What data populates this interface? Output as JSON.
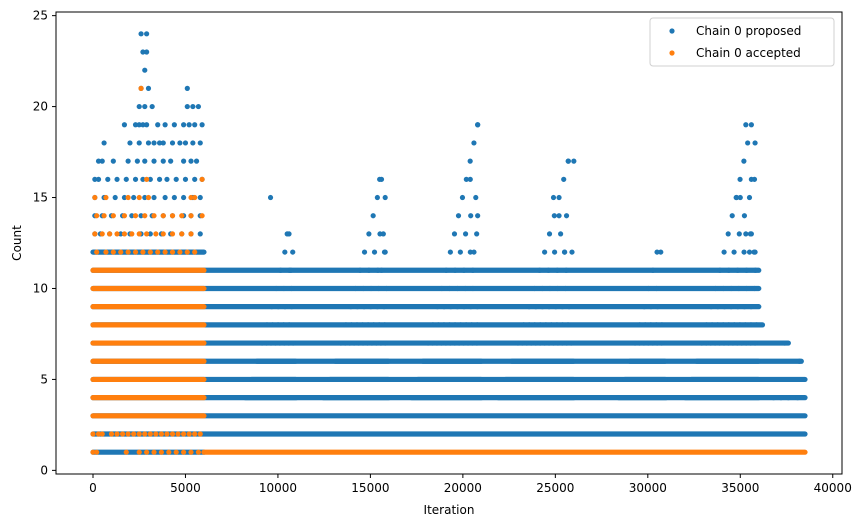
{
  "chart_data": {
    "type": "scatter",
    "title": "",
    "xlabel": "Iteration",
    "ylabel": "Count",
    "xlim": [
      -2000,
      40500
    ],
    "ylim": [
      -0.2,
      25.2
    ],
    "xticks": [
      0,
      5000,
      10000,
      15000,
      20000,
      25000,
      30000,
      35000,
      40000
    ],
    "yticks": [
      0,
      5,
      10,
      15,
      20,
      25
    ],
    "xtick_labels": [
      "0",
      "5000",
      "10000",
      "15000",
      "20000",
      "25000",
      "30000",
      "35000",
      "40000"
    ],
    "ytick_labels": [
      "0",
      "5",
      "10",
      "15",
      "20",
      "25"
    ],
    "grid": false,
    "legend_position": "top-right",
    "series": [
      {
        "name": "Chain 0 proposed",
        "color": "#1f77b4",
        "bands": [
          {
            "y": 1,
            "x_start": 0,
            "x_end": 6000
          },
          {
            "y": 2,
            "x_start": 0,
            "x_end": 38500
          },
          {
            "y": 3,
            "x_start": 0,
            "x_end": 38500
          },
          {
            "y": 4,
            "x_start": 0,
            "x_end": 38500
          },
          {
            "y": 5,
            "x_start": 0,
            "x_end": 38500
          },
          {
            "y": 6,
            "x_start": 0,
            "x_end": 38300
          },
          {
            "y": 7,
            "x_start": 0,
            "x_end": 37600
          },
          {
            "y": 8,
            "x_start": 0,
            "x_end": 36200
          },
          {
            "y": 9,
            "x_start": 0,
            "x_end": 36000
          },
          {
            "y": 10,
            "x_start": 0,
            "x_end": 36000
          },
          {
            "y": 11,
            "x_start": 0,
            "x_end": 36000
          },
          {
            "y": 12,
            "x_start": 0,
            "x_end": 6000
          }
        ],
        "clusters": [
          {
            "x_start": 7800,
            "x_end": 11000,
            "peak_x": 10600,
            "top": 13
          },
          {
            "x_start": 12000,
            "x_end": 16000,
            "peak_x": 15600,
            "top": 16
          },
          {
            "x_start": 16800,
            "x_end": 21000,
            "peak_x": 20800,
            "top": 19
          },
          {
            "x_start": 21400,
            "x_end": 26000,
            "peak_x": 25700,
            "top": 17
          },
          {
            "x_start": 28000,
            "x_end": 31000,
            "peak_x": 30500,
            "top": 12
          },
          {
            "x_start": 31600,
            "x_end": 36000,
            "peak_x": 35600,
            "top": 19
          }
        ],
        "points": [
          [
            2600,
            24
          ],
          [
            2900,
            24
          ],
          [
            2700,
            23
          ],
          [
            2900,
            23
          ],
          [
            2800,
            22
          ],
          [
            2600,
            21
          ],
          [
            3000,
            21
          ],
          [
            5100,
            21
          ],
          [
            2500,
            20
          ],
          [
            2800,
            20
          ],
          [
            3200,
            20
          ],
          [
            5100,
            20
          ],
          [
            5400,
            20
          ],
          [
            5700,
            20
          ],
          [
            1700,
            19
          ],
          [
            2300,
            19
          ],
          [
            2500,
            19
          ],
          [
            2700,
            19
          ],
          [
            2900,
            19
          ],
          [
            3500,
            19
          ],
          [
            3900,
            19
          ],
          [
            4400,
            19
          ],
          [
            4900,
            19
          ],
          [
            5200,
            19
          ],
          [
            5500,
            19
          ],
          [
            5900,
            19
          ],
          [
            600,
            18
          ],
          [
            2000,
            18
          ],
          [
            2500,
            18
          ],
          [
            3000,
            18
          ],
          [
            3300,
            18
          ],
          [
            3600,
            18
          ],
          [
            3800,
            18
          ],
          [
            4300,
            18
          ],
          [
            4700,
            18
          ],
          [
            5000,
            18
          ],
          [
            5400,
            18
          ],
          [
            5800,
            18
          ],
          [
            300,
            17
          ],
          [
            500,
            17
          ],
          [
            1100,
            17
          ],
          [
            1900,
            17
          ],
          [
            2400,
            17
          ],
          [
            2800,
            17
          ],
          [
            3300,
            17
          ],
          [
            3800,
            17
          ],
          [
            4200,
            17
          ],
          [
            4900,
            17
          ],
          [
            5300,
            17
          ],
          [
            5600,
            17
          ],
          [
            100,
            16
          ],
          [
            300,
            16
          ],
          [
            800,
            16
          ],
          [
            1300,
            16
          ],
          [
            1800,
            16
          ],
          [
            2300,
            16
          ],
          [
            2700,
            16
          ],
          [
            3100,
            16
          ],
          [
            3600,
            16
          ],
          [
            4000,
            16
          ],
          [
            4500,
            16
          ],
          [
            5000,
            16
          ],
          [
            5500,
            16
          ],
          [
            5900,
            16
          ],
          [
            100,
            15
          ],
          [
            600,
            15
          ],
          [
            1200,
            15
          ],
          [
            1700,
            15
          ],
          [
            2200,
            15
          ],
          [
            2800,
            15
          ],
          [
            3300,
            15
          ],
          [
            3900,
            15
          ],
          [
            4400,
            15
          ],
          [
            4900,
            15
          ],
          [
            5400,
            15
          ],
          [
            5800,
            15
          ],
          [
            100,
            14
          ],
          [
            500,
            14
          ],
          [
            1000,
            14
          ],
          [
            1600,
            14
          ],
          [
            2100,
            14
          ],
          [
            2600,
            14
          ],
          [
            3200,
            14
          ],
          [
            3800,
            14
          ],
          [
            4300,
            14
          ],
          [
            4900,
            14
          ],
          [
            5300,
            14
          ],
          [
            5800,
            14
          ],
          [
            100,
            13
          ],
          [
            400,
            13
          ],
          [
            900,
            13
          ],
          [
            1500,
            13
          ],
          [
            2000,
            13
          ],
          [
            2600,
            13
          ],
          [
            3100,
            13
          ],
          [
            3700,
            13
          ],
          [
            4200,
            13
          ],
          [
            4800,
            13
          ],
          [
            5300,
            13
          ],
          [
            5800,
            13
          ],
          [
            9600,
            15
          ],
          [
            10500,
            13
          ],
          [
            10800,
            12
          ],
          [
            10700,
            11
          ],
          [
            15500,
            16
          ],
          [
            15800,
            15
          ],
          [
            15700,
            13
          ],
          [
            15800,
            12
          ],
          [
            15600,
            11
          ],
          [
            20400,
            16
          ],
          [
            20800,
            19
          ],
          [
            20800,
            14
          ],
          [
            20600,
            12
          ],
          [
            24900,
            15
          ],
          [
            25200,
            14
          ],
          [
            25700,
            17
          ],
          [
            26000,
            17
          ],
          [
            25500,
            12
          ],
          [
            25900,
            12
          ],
          [
            30700,
            12
          ],
          [
            35300,
            19
          ],
          [
            35600,
            16
          ],
          [
            35800,
            18
          ],
          [
            34800,
            15
          ],
          [
            35000,
            15
          ],
          [
            35300,
            13
          ],
          [
            35600,
            13
          ],
          [
            35500,
            12
          ],
          [
            35800,
            12
          ],
          [
            37400,
            7
          ],
          [
            38200,
            6
          ],
          [
            36800,
            4
          ],
          [
            37200,
            4
          ],
          [
            37600,
            4
          ],
          [
            38100,
            4
          ]
        ]
      },
      {
        "name": "Chain 0 accepted",
        "color": "#ff7f0e",
        "bands": [
          {
            "y": 1,
            "x_start": 6000,
            "x_end": 38500
          },
          {
            "y": 3,
            "x_start": 0,
            "x_end": 6000
          },
          {
            "y": 4,
            "x_start": 0,
            "x_end": 6000
          },
          {
            "y": 5,
            "x_start": 0,
            "x_end": 6000
          },
          {
            "y": 6,
            "x_start": 0,
            "x_end": 6000
          },
          {
            "y": 7,
            "x_start": 0,
            "x_end": 6000
          },
          {
            "y": 8,
            "x_start": 0,
            "x_end": 6000
          },
          {
            "y": 9,
            "x_start": 0,
            "x_end": 6000
          },
          {
            "y": 10,
            "x_start": 0,
            "x_end": 6000
          },
          {
            "y": 11,
            "x_start": 0,
            "x_end": 6000
          }
        ],
        "points": [
          [
            0,
            1
          ],
          [
            200,
            1
          ],
          [
            1800,
            1
          ],
          [
            2500,
            1
          ],
          [
            2900,
            1
          ],
          [
            3300,
            1
          ],
          [
            3700,
            1
          ],
          [
            4100,
            1
          ],
          [
            4500,
            1
          ],
          [
            4900,
            1
          ],
          [
            5300,
            1
          ],
          [
            5700,
            1
          ],
          [
            0,
            2
          ],
          [
            300,
            2
          ],
          [
            500,
            2
          ],
          [
            1000,
            2
          ],
          [
            1300,
            2
          ],
          [
            1600,
            2
          ],
          [
            1900,
            2
          ],
          [
            2200,
            2
          ],
          [
            2500,
            2
          ],
          [
            2800,
            2
          ],
          [
            3100,
            2
          ],
          [
            3400,
            2
          ],
          [
            3700,
            2
          ],
          [
            4000,
            2
          ],
          [
            4300,
            2
          ],
          [
            4600,
            2
          ],
          [
            4900,
            2
          ],
          [
            5200,
            2
          ],
          [
            5500,
            2
          ],
          [
            5800,
            2
          ],
          [
            200,
            12
          ],
          [
            700,
            12
          ],
          [
            1100,
            12
          ],
          [
            1500,
            12
          ],
          [
            1900,
            12
          ],
          [
            2300,
            12
          ],
          [
            2700,
            12
          ],
          [
            3100,
            12
          ],
          [
            3500,
            12
          ],
          [
            3900,
            12
          ],
          [
            4300,
            12
          ],
          [
            4700,
            12
          ],
          [
            5100,
            12
          ],
          [
            5500,
            12
          ],
          [
            100,
            13
          ],
          [
            500,
            13
          ],
          [
            900,
            13
          ],
          [
            1300,
            13
          ],
          [
            1700,
            13
          ],
          [
            2100,
            13
          ],
          [
            2500,
            13
          ],
          [
            2900,
            13
          ],
          [
            3400,
            13
          ],
          [
            3800,
            13
          ],
          [
            4300,
            13
          ],
          [
            4800,
            13
          ],
          [
            5300,
            13
          ],
          [
            200,
            14
          ],
          [
            600,
            14
          ],
          [
            1100,
            14
          ],
          [
            1700,
            14
          ],
          [
            2300,
            14
          ],
          [
            2800,
            14
          ],
          [
            3300,
            14
          ],
          [
            3800,
            14
          ],
          [
            4300,
            14
          ],
          [
            4800,
            14
          ],
          [
            5300,
            14
          ],
          [
            5900,
            14
          ],
          [
            100,
            15
          ],
          [
            700,
            15
          ],
          [
            1900,
            15
          ],
          [
            2500,
            15
          ],
          [
            3000,
            15
          ],
          [
            5300,
            15
          ],
          [
            5500,
            15
          ],
          [
            2900,
            16
          ],
          [
            5900,
            16
          ],
          [
            2600,
            21
          ]
        ]
      }
    ]
  }
}
